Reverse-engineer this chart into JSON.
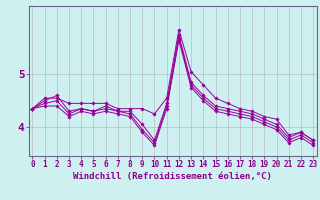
{
  "xlabel": "Windchill (Refroidissement éolien,°C)",
  "bg_color": "#cff0f0",
  "line_color": "#990099",
  "grid_color": "#b0b0b0",
  "axis_color": "#880088",
  "spine_color": "#666688",
  "x_ticks": [
    0,
    1,
    2,
    3,
    4,
    5,
    6,
    7,
    8,
    9,
    10,
    11,
    12,
    13,
    14,
    15,
    16,
    17,
    18,
    19,
    20,
    21,
    22,
    23
  ],
  "y_ticks": [
    4,
    5
  ],
  "ylim": [
    3.45,
    6.3
  ],
  "xlim": [
    -0.3,
    23.3
  ],
  "lines": [
    [
      4.35,
      4.55,
      4.55,
      4.45,
      4.45,
      4.45,
      4.45,
      4.35,
      4.35,
      4.35,
      4.25,
      4.55,
      5.85,
      5.05,
      4.8,
      4.55,
      4.45,
      4.35,
      4.3,
      4.2,
      4.15,
      3.85,
      3.9,
      3.75
    ],
    [
      4.35,
      4.5,
      4.6,
      4.3,
      4.35,
      4.3,
      4.4,
      4.3,
      4.3,
      4.05,
      3.75,
      4.45,
      5.75,
      4.85,
      4.6,
      4.4,
      4.35,
      4.3,
      4.25,
      4.15,
      4.05,
      3.8,
      3.9,
      3.75
    ],
    [
      4.35,
      4.45,
      4.5,
      4.25,
      4.35,
      4.3,
      4.35,
      4.3,
      4.25,
      3.95,
      3.7,
      4.4,
      5.7,
      4.8,
      4.55,
      4.35,
      4.3,
      4.25,
      4.2,
      4.1,
      4.0,
      3.75,
      3.85,
      3.7
    ],
    [
      4.35,
      4.4,
      4.4,
      4.2,
      4.3,
      4.25,
      4.3,
      4.25,
      4.2,
      3.9,
      3.65,
      4.35,
      5.65,
      4.75,
      4.5,
      4.3,
      4.25,
      4.2,
      4.15,
      4.05,
      3.95,
      3.7,
      3.8,
      3.65
    ]
  ],
  "label_fontsize": 6.5,
  "tick_fontsize": 5.5
}
